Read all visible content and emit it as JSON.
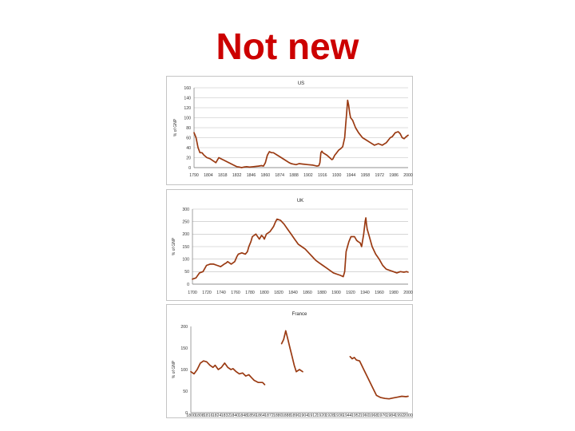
{
  "slide": {
    "title": "Not new"
  },
  "colors": {
    "title": "#cc0000",
    "series": "#9a3a12",
    "grid": "#bdbdbd"
  },
  "chart_data": [
    {
      "type": "line",
      "title": "US",
      "ylabel": "% of GNP",
      "xlim": [
        1790,
        2006
      ],
      "ylim": [
        0,
        160
      ],
      "yticks": [
        0,
        20,
        40,
        60,
        80,
        100,
        120,
        140,
        160
      ],
      "xticks": [
        "1790",
        "1804",
        "1818",
        "1832",
        "1846",
        "1860",
        "1874",
        "1888",
        "1902",
        "1916",
        "1930",
        "1944",
        "1958",
        "1972",
        "1986",
        "2000"
      ],
      "grid": true,
      "series": [
        {
          "x": [
            1790,
            1792,
            1794,
            1796,
            1798,
            1800,
            1803,
            1806,
            1809,
            1812,
            1815,
            1817,
            1820,
            1825,
            1830,
            1833,
            1836,
            1838,
            1840,
            1843,
            1846,
            1850,
            1855,
            1858,
            1860,
            1862,
            1864,
            1866,
            1868,
            1870,
            1874,
            1878,
            1882,
            1886,
            1888,
            1890,
            1893,
            1896,
            1900,
            1905,
            1910,
            1914,
            1916,
            1917,
            1918,
            1919,
            1920,
            1924,
            1928,
            1929,
            1930,
            1932,
            1934,
            1936,
            1938,
            1940,
            1942,
            1943,
            1944,
            1945,
            1946,
            1947,
            1948,
            1950,
            1953,
            1956,
            1960,
            1964,
            1968,
            1972,
            1976,
            1980,
            1984,
            1988,
            1990,
            1993,
            1996,
            1998,
            2000,
            2002,
            2004,
            2006
          ],
          "y": [
            70,
            60,
            40,
            30,
            30,
            25,
            20,
            18,
            14,
            10,
            20,
            18,
            15,
            10,
            5,
            2,
            1,
            0,
            1,
            2,
            1,
            2,
            3,
            4,
            3,
            10,
            25,
            32,
            30,
            30,
            25,
            20,
            15,
            10,
            8,
            7,
            6,
            8,
            7,
            6,
            5,
            3,
            4,
            10,
            30,
            33,
            30,
            25,
            18,
            16,
            17,
            25,
            30,
            35,
            38,
            42,
            60,
            85,
            110,
            135,
            125,
            110,
            100,
            95,
            80,
            70,
            60,
            55,
            50,
            45,
            48,
            45,
            50,
            60,
            62,
            70,
            72,
            68,
            60,
            58,
            62,
            65
          ]
        }
      ]
    },
    {
      "type": "line",
      "title": "UK",
      "ylabel": "% of GNP",
      "xlim": [
        1700,
        2006
      ],
      "ylim": [
        0,
        300
      ],
      "yticks": [
        0,
        50,
        100,
        150,
        200,
        250,
        300
      ],
      "xticks": [
        "1700",
        "1720",
        "1740",
        "1760",
        "1780",
        "1800",
        "1820",
        "1840",
        "1860",
        "1880",
        "1900",
        "1920",
        "1940",
        "1960",
        "1980",
        "2000"
      ],
      "grid": true,
      "series": [
        {
          "x": [
            1700,
            1705,
            1710,
            1715,
            1720,
            1725,
            1730,
            1735,
            1740,
            1745,
            1748,
            1750,
            1755,
            1760,
            1763,
            1765,
            1770,
            1775,
            1778,
            1780,
            1783,
            1785,
            1790,
            1795,
            1798,
            1800,
            1802,
            1805,
            1810,
            1815,
            1818,
            1820,
            1825,
            1830,
            1835,
            1840,
            1845,
            1850,
            1855,
            1860,
            1865,
            1870,
            1875,
            1880,
            1885,
            1890,
            1895,
            1900,
            1905,
            1910,
            1914,
            1916,
            1918,
            1920,
            1922,
            1925,
            1930,
            1933,
            1935,
            1938,
            1940,
            1943,
            1945,
            1946,
            1947,
            1948,
            1950,
            1955,
            1960,
            1965,
            1970,
            1975,
            1980,
            1985,
            1990,
            1995,
            2000,
            2004,
            2006
          ],
          "y": [
            20,
            25,
            45,
            50,
            75,
            80,
            80,
            75,
            70,
            80,
            85,
            90,
            80,
            90,
            110,
            120,
            125,
            120,
            130,
            150,
            170,
            190,
            200,
            180,
            195,
            190,
            180,
            200,
            210,
            230,
            250,
            260,
            255,
            240,
            220,
            200,
            180,
            160,
            150,
            140,
            125,
            110,
            95,
            85,
            75,
            65,
            55,
            45,
            40,
            35,
            30,
            50,
            130,
            150,
            170,
            190,
            190,
            175,
            170,
            165,
            150,
            200,
            250,
            265,
            240,
            220,
            200,
            150,
            120,
            100,
            75,
            60,
            55,
            50,
            45,
            50,
            48,
            50,
            48
          ]
        }
      ]
    },
    {
      "type": "line",
      "title": "France",
      "ylabel": "% of GNP",
      "xlim": [
        1800,
        2006
      ],
      "ylim": [
        0,
        200
      ],
      "yticks": [
        0,
        50,
        100,
        150,
        200
      ],
      "xticks": [
        "1800",
        "1808",
        "1816",
        "1824",
        "1832",
        "1840",
        "1848",
        "1856",
        "1864",
        "1872",
        "1880",
        "1888",
        "1896",
        "1904",
        "1912",
        "1920",
        "1928",
        "1936",
        "1944",
        "1952",
        "1960",
        "1968",
        "1976",
        "1984",
        "1992",
        "2000"
      ],
      "grid": false,
      "series": [
        {
          "x": [
            1800,
            1803,
            1806,
            1809,
            1812,
            1815,
            1818,
            1821,
            1823,
            1826,
            1829,
            1832,
            1835,
            1838,
            1840,
            1843,
            1846,
            1849,
            1852,
            1855,
            1858,
            1860,
            1864,
            1868,
            1870
          ],
          "y": [
            95,
            90,
            100,
            115,
            120,
            118,
            110,
            105,
            110,
            100,
            105,
            115,
            105,
            100,
            102,
            95,
            90,
            92,
            85,
            88,
            80,
            75,
            70,
            70,
            65
          ]
        },
        {
          "x": [
            1886,
            1888,
            1890,
            1892,
            1894,
            1896,
            1898,
            1900,
            1903,
            1906
          ],
          "y": [
            160,
            170,
            190,
            170,
            150,
            130,
            110,
            95,
            100,
            95
          ]
        },
        {
          "x": [
            1951,
            1953,
            1955,
            1957,
            1960,
            1964,
            1968,
            1972,
            1976,
            1980,
            1984,
            1988,
            1992,
            1996,
            2000,
            2004,
            2006
          ],
          "y": [
            130,
            125,
            128,
            122,
            120,
            100,
            80,
            60,
            40,
            35,
            33,
            32,
            34,
            36,
            38,
            37,
            38
          ]
        }
      ]
    }
  ]
}
